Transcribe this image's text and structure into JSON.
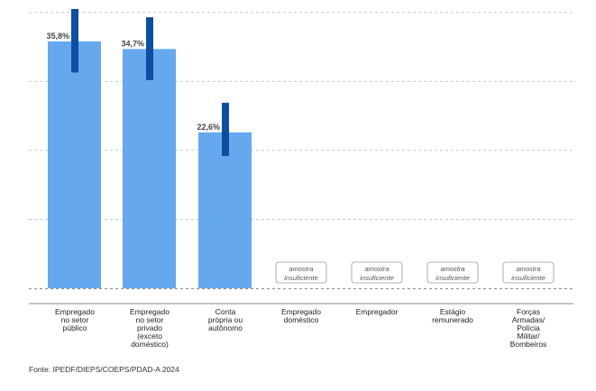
{
  "chart_data": {
    "type": "bar",
    "categories": [
      [
        "Empregado",
        "no setor",
        "público"
      ],
      [
        "Empregado",
        "no setor",
        "privado",
        "(exceto",
        "doméstico)"
      ],
      [
        "Conta",
        "própria ou",
        "autônomo"
      ],
      [
        "Empregado",
        "doméstico"
      ],
      [
        "Empregador"
      ],
      [
        "Estágio",
        "remunerado"
      ],
      [
        "Forças",
        "Armadas/",
        "Polícia",
        "Militar/",
        "Bombeiros"
      ]
    ],
    "values": [
      35.8,
      34.7,
      22.6,
      null,
      null,
      null,
      null
    ],
    "value_labels": [
      "35,8%",
      "34,7%",
      "22,6%",
      null,
      null,
      null,
      null
    ],
    "ci_low": [
      31.3,
      30.2,
      19.2,
      null,
      null,
      null,
      null
    ],
    "ci_high": [
      40.5,
      39.3,
      26.9,
      null,
      null,
      null,
      null
    ],
    "insufficient_label": [
      "amostra",
      "insuficiente"
    ],
    "ylim": [
      0,
      40.5
    ],
    "gridlines": [
      0,
      10,
      20,
      30,
      40
    ],
    "grid": true,
    "colors": {
      "bar": "#65a8ee",
      "ci": "#0b4ea2",
      "grid": "#c8c8c8",
      "axis": "#8a8a8a"
    },
    "title": "",
    "xlabel": "",
    "ylabel": ""
  },
  "source": "Fonte: IPEDF/DIEPS/COEPS/PDAD-A 2024"
}
